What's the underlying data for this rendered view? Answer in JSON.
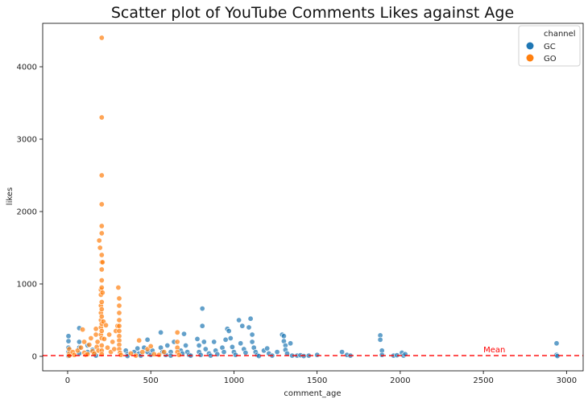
{
  "chart_data": {
    "type": "scatter",
    "title": "Scatter plot of YouTube Comments Likes against Age",
    "xlabel": "comment_age",
    "ylabel": "likes",
    "xlim": [
      -150,
      3100
    ],
    "ylim": [
      -200,
      4600
    ],
    "xticks": [
      0,
      500,
      1000,
      1500,
      2000,
      2500,
      3000
    ],
    "yticks": [
      0,
      1000,
      2000,
      3000,
      4000
    ],
    "grid": false,
    "legend": {
      "title": "channel",
      "placement": "top-right"
    },
    "mean_line": {
      "y": 10,
      "label": "Mean",
      "label_x": 2500,
      "color": "#ff0000"
    },
    "series": [
      {
        "name": "GC",
        "color": "#1f77b4",
        "points": [
          [
            5,
            280
          ],
          [
            5,
            210
          ],
          [
            5,
            120
          ],
          [
            5,
            60
          ],
          [
            5,
            20
          ],
          [
            5,
            5
          ],
          [
            70,
            390
          ],
          [
            70,
            200
          ],
          [
            70,
            120
          ],
          [
            70,
            40
          ],
          [
            120,
            150
          ],
          [
            120,
            60
          ],
          [
            150,
            90
          ],
          [
            160,
            30
          ],
          [
            170,
            10
          ],
          [
            350,
            80
          ],
          [
            360,
            30
          ],
          [
            360,
            5
          ],
          [
            400,
            60
          ],
          [
            420,
            110
          ],
          [
            430,
            40
          ],
          [
            440,
            10
          ],
          [
            460,
            120
          ],
          [
            480,
            60
          ],
          [
            480,
            230
          ],
          [
            500,
            20
          ],
          [
            510,
            80
          ],
          [
            560,
            330
          ],
          [
            560,
            120
          ],
          [
            570,
            60
          ],
          [
            590,
            20
          ],
          [
            600,
            150
          ],
          [
            620,
            60
          ],
          [
            620,
            10
          ],
          [
            640,
            200
          ],
          [
            680,
            80
          ],
          [
            690,
            40
          ],
          [
            700,
            310
          ],
          [
            710,
            150
          ],
          [
            720,
            60
          ],
          [
            730,
            20
          ],
          [
            740,
            10
          ],
          [
            780,
            240
          ],
          [
            790,
            150
          ],
          [
            790,
            60
          ],
          [
            800,
            20
          ],
          [
            810,
            660
          ],
          [
            810,
            420
          ],
          [
            820,
            200
          ],
          [
            830,
            100
          ],
          [
            850,
            40
          ],
          [
            860,
            10
          ],
          [
            880,
            200
          ],
          [
            890,
            80
          ],
          [
            900,
            30
          ],
          [
            930,
            120
          ],
          [
            940,
            60
          ],
          [
            950,
            230
          ],
          [
            960,
            380
          ],
          [
            970,
            350
          ],
          [
            980,
            250
          ],
          [
            990,
            130
          ],
          [
            1000,
            60
          ],
          [
            1010,
            20
          ],
          [
            1030,
            500
          ],
          [
            1040,
            180
          ],
          [
            1050,
            420
          ],
          [
            1060,
            100
          ],
          [
            1070,
            50
          ],
          [
            1090,
            400
          ],
          [
            1100,
            520
          ],
          [
            1110,
            300
          ],
          [
            1110,
            200
          ],
          [
            1120,
            120
          ],
          [
            1130,
            60
          ],
          [
            1140,
            20
          ],
          [
            1150,
            5
          ],
          [
            1180,
            80
          ],
          [
            1200,
            110
          ],
          [
            1210,
            40
          ],
          [
            1230,
            10
          ],
          [
            1260,
            60
          ],
          [
            1290,
            300
          ],
          [
            1300,
            280
          ],
          [
            1300,
            210
          ],
          [
            1310,
            150
          ],
          [
            1310,
            90
          ],
          [
            1320,
            40
          ],
          [
            1340,
            180
          ],
          [
            1350,
            10
          ],
          [
            1380,
            10
          ],
          [
            1400,
            15
          ],
          [
            1420,
            5
          ],
          [
            1450,
            10
          ],
          [
            1500,
            20
          ],
          [
            1650,
            60
          ],
          [
            1680,
            20
          ],
          [
            1700,
            10
          ],
          [
            1880,
            290
          ],
          [
            1880,
            230
          ],
          [
            1890,
            80
          ],
          [
            1890,
            20
          ],
          [
            1960,
            10
          ],
          [
            1980,
            15
          ],
          [
            2010,
            50
          ],
          [
            2020,
            10
          ],
          [
            2030,
            30
          ],
          [
            2940,
            180
          ],
          [
            2940,
            20
          ],
          [
            2945,
            5
          ]
        ]
      },
      {
        "name": "GO",
        "color": "#ff7f0e",
        "points": [
          [
            10,
            100
          ],
          [
            10,
            40
          ],
          [
            10,
            10
          ],
          [
            30,
            60
          ],
          [
            40,
            20
          ],
          [
            60,
            80
          ],
          [
            80,
            120
          ],
          [
            90,
            370
          ],
          [
            100,
            200
          ],
          [
            100,
            50
          ],
          [
            110,
            20
          ],
          [
            120,
            30
          ],
          [
            130,
            160
          ],
          [
            140,
            250
          ],
          [
            150,
            70
          ],
          [
            160,
            40
          ],
          [
            170,
            300
          ],
          [
            170,
            380
          ],
          [
            175,
            130
          ],
          [
            180,
            200
          ],
          [
            185,
            80
          ],
          [
            190,
            1600
          ],
          [
            195,
            1500
          ],
          [
            200,
            920
          ],
          [
            200,
            850
          ],
          [
            200,
            700
          ],
          [
            200,
            600
          ],
          [
            200,
            500
          ],
          [
            200,
            400
          ],
          [
            200,
            300
          ],
          [
            205,
            4400
          ],
          [
            205,
            3300
          ],
          [
            205,
            2500
          ],
          [
            205,
            2100
          ],
          [
            205,
            1800
          ],
          [
            205,
            1700
          ],
          [
            205,
            1400
          ],
          [
            205,
            1300
          ],
          [
            205,
            1200
          ],
          [
            205,
            1050
          ],
          [
            205,
            950
          ],
          [
            205,
            750
          ],
          [
            205,
            650
          ],
          [
            205,
            550
          ],
          [
            205,
            450
          ],
          [
            205,
            350
          ],
          [
            205,
            250
          ],
          [
            205,
            150
          ],
          [
            205,
            80
          ],
          [
            205,
            30
          ],
          [
            210,
            1300
          ],
          [
            210,
            880
          ],
          [
            215,
            480
          ],
          [
            220,
            240
          ],
          [
            230,
            430
          ],
          [
            240,
            120
          ],
          [
            250,
            300
          ],
          [
            260,
            60
          ],
          [
            270,
            200
          ],
          [
            280,
            100
          ],
          [
            290,
            350
          ],
          [
            300,
            420
          ],
          [
            305,
            950
          ],
          [
            310,
            800
          ],
          [
            310,
            700
          ],
          [
            310,
            600
          ],
          [
            310,
            500
          ],
          [
            310,
            420
          ],
          [
            310,
            350
          ],
          [
            310,
            280
          ],
          [
            310,
            220
          ],
          [
            310,
            160
          ],
          [
            310,
            100
          ],
          [
            315,
            50
          ],
          [
            320,
            20
          ],
          [
            380,
            40
          ],
          [
            410,
            10
          ],
          [
            430,
            220
          ],
          [
            450,
            60
          ],
          [
            480,
            100
          ],
          [
            500,
            140
          ],
          [
            520,
            30
          ],
          [
            550,
            20
          ],
          [
            580,
            60
          ],
          [
            660,
            330
          ],
          [
            660,
            200
          ],
          [
            660,
            120
          ],
          [
            660,
            60
          ],
          [
            670,
            20
          ]
        ]
      }
    ]
  }
}
